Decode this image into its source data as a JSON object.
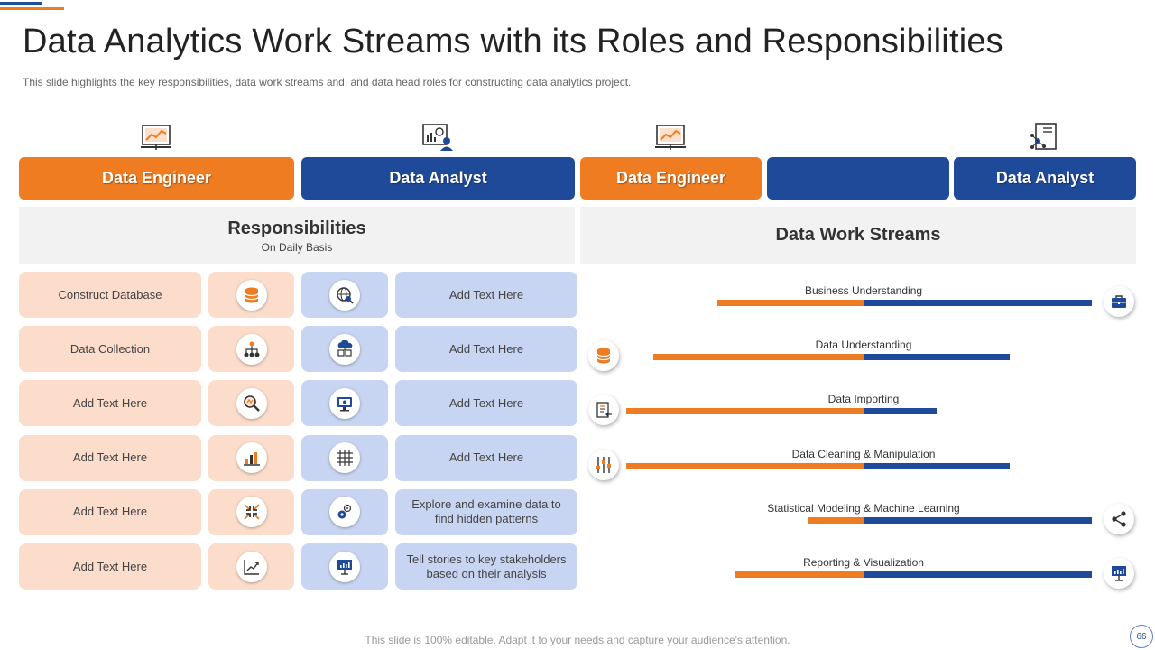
{
  "title": "Data Analytics Work Streams with its Roles and Responsibilities",
  "subtitle": "This slide highlights the key responsibilities, data work streams and. and data head roles for  constructing data analytics project.",
  "roles": [
    {
      "label": "Data Engineer",
      "color": "#f07c22",
      "icon": "presentation-chart-icon"
    },
    {
      "label": "Data Analyst",
      "color": "#1f4a99",
      "icon": "analyst-dashboard-icon"
    },
    {
      "label": "Data Engineer",
      "color": "#f07c22",
      "icon": "presentation-chart-icon"
    },
    {
      "label": "",
      "color": "#1f4a99",
      "icon": ""
    },
    {
      "label": "Data Analyst",
      "color": "#1f4a99",
      "icon": "document-network-icon"
    }
  ],
  "responsibilities": {
    "title": "Responsibilities",
    "subtitle": "On Daily Basis",
    "rows": [
      {
        "engineer": "Construct Database",
        "engineer_icon": "database-icon",
        "analyst_icon": "globe-search-icon",
        "analyst": "Add Text Here"
      },
      {
        "engineer": "Data Collection",
        "engineer_icon": "hierarchy-icon",
        "analyst_icon": "cloud-server-icon",
        "analyst": "Add Text Here"
      },
      {
        "engineer": "Add Text Here",
        "engineer_icon": "magnifier-icon",
        "analyst_icon": "monitor-icon",
        "analyst": "Add Text Here"
      },
      {
        "engineer": "Add Text Here",
        "engineer_icon": "bar-chart-icon",
        "analyst_icon": "grid-icon",
        "analyst": "Add Text Here"
      },
      {
        "engineer": "Add Text Here",
        "engineer_icon": "arrows-converge-icon",
        "analyst_icon": "gears-icon",
        "analyst": "Explore and examine data to find hidden patterns"
      },
      {
        "engineer": "Add Text Here",
        "engineer_icon": "line-chart-icon",
        "analyst_icon": "presentation-board-icon",
        "analyst": "Tell stories to key stakeholders based on their analysis"
      }
    ]
  },
  "work_streams": {
    "title": "Data Work Streams",
    "bar_colors": {
      "engineer": "#f07c22",
      "analyst": "#1f4a99"
    },
    "items": [
      {
        "label": "Business Understanding",
        "engineer": 0.32,
        "analyst": 0.5,
        "icon": "briefcase-icon",
        "icon_side": "right"
      },
      {
        "label": "Data Understanding",
        "engineer": 0.46,
        "analyst": 0.32,
        "icon": "database-icon",
        "icon_side": "left"
      },
      {
        "label": "Data Importing",
        "engineer": 0.52,
        "analyst": 0.16,
        "icon": "document-import-icon",
        "icon_side": "left"
      },
      {
        "label": "Data Cleaning & Manipulation",
        "engineer": 0.52,
        "analyst": 0.32,
        "icon": "sliders-icon",
        "icon_side": "left"
      },
      {
        "label": "Statistical Modeling & Machine Learning",
        "engineer": 0.12,
        "analyst": 0.5,
        "icon": "share-icon",
        "icon_side": "right"
      },
      {
        "label": "Reporting & Visualization",
        "engineer": 0.28,
        "analyst": 0.5,
        "icon": "presentation-board-icon",
        "icon_side": "right"
      }
    ]
  },
  "footer": "This slide is 100% editable. Adapt it to your needs and capture your audience's attention.",
  "page_number": "66"
}
